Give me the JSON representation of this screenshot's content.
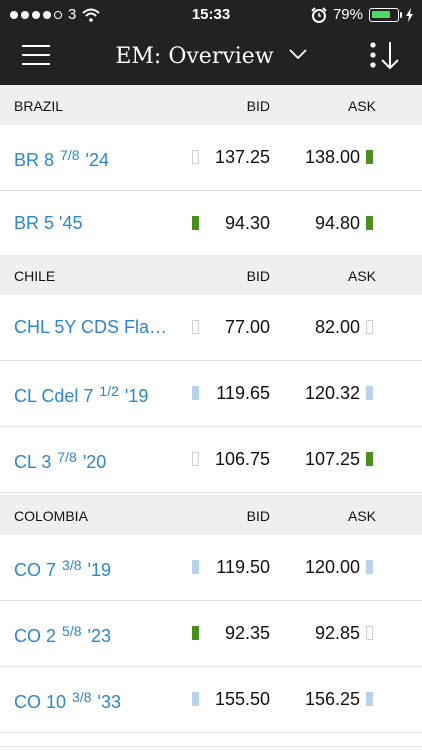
{
  "status_bar": {
    "carrier": "3",
    "time": "15:33",
    "battery_pct": "79%",
    "battery_level": 0.79,
    "icons": [
      "signal-dots-icon",
      "wifi-icon",
      "alarm-clock-icon",
      "battery-icon",
      "charging-bolt-icon"
    ]
  },
  "nav": {
    "title": "EM: Overview",
    "icons": [
      "hamburger-menu-icon",
      "chevron-down-icon",
      "sort-icon"
    ]
  },
  "sections": [
    {
      "name": "BRAZIL",
      "bid_label": "BID",
      "ask_label": "ASK",
      "rows": [
        {
          "prefix": "BR 8",
          "frac": "7/8",
          "suffix": "'24",
          "bid": "137.25",
          "ask": "138.00",
          "bid_ind": "none",
          "ask_ind": "green"
        },
        {
          "prefix": "BR 5 '45",
          "frac": "",
          "suffix": "",
          "bid": "94.30",
          "ask": "94.80",
          "bid_ind": "green",
          "ask_ind": "green"
        }
      ]
    },
    {
      "name": "CHILE",
      "bid_label": "BID",
      "ask_label": "ASK",
      "rows": [
        {
          "prefix": "CHL 5Y CDS Fla…",
          "frac": "",
          "suffix": "",
          "bid": "77.00",
          "ask": "82.00",
          "bid_ind": "none",
          "ask_ind": "none"
        },
        {
          "prefix": "CL Cdel 7",
          "frac": "1/2",
          "suffix": "'19",
          "bid": "119.65",
          "ask": "120.32",
          "bid_ind": "blue",
          "ask_ind": "blue"
        },
        {
          "prefix": "CL 3",
          "frac": "7/8",
          "suffix": "'20",
          "bid": "106.75",
          "ask": "107.25",
          "bid_ind": "none",
          "ask_ind": "green"
        }
      ]
    },
    {
      "name": "COLOMBIA",
      "bid_label": "BID",
      "ask_label": "ASK",
      "rows": [
        {
          "prefix": "CO 7",
          "frac": "3/8",
          "suffix": "'19",
          "bid": "119.50",
          "ask": "120.00",
          "bid_ind": "blue",
          "ask_ind": "blue"
        },
        {
          "prefix": "CO 2",
          "frac": "5/8",
          "suffix": "'23",
          "bid": "92.35",
          "ask": "92.85",
          "bid_ind": "green",
          "ask_ind": "none"
        },
        {
          "prefix": "CO 10",
          "frac": "3/8",
          "suffix": "'33",
          "bid": "155.50",
          "ask": "156.25",
          "bid_ind": "blue",
          "ask_ind": "blue"
        }
      ]
    }
  ],
  "colors": {
    "header_bg": "#222222",
    "link_blue": "#2f86c6",
    "section_bg": "#efeff0",
    "indicator_green": "#4b8f1f",
    "indicator_blue": "#b8d3ea"
  }
}
